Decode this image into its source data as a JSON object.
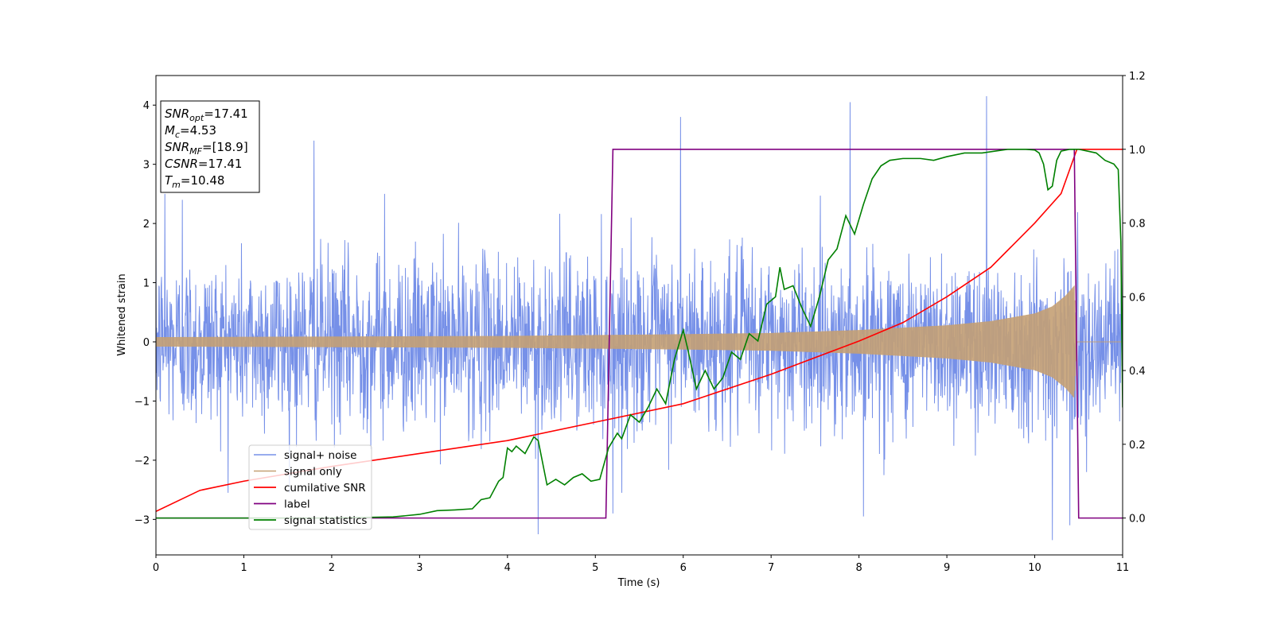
{
  "chart_data": {
    "type": "line",
    "xlabel": "Time (s)",
    "ylabel": "Whitened strain",
    "xlim": [
      0,
      11
    ],
    "ylim_left": [
      -3.6,
      4.5
    ],
    "ylim_right": [
      -0.1,
      1.2
    ],
    "x_ticks": [
      0,
      1,
      2,
      3,
      4,
      5,
      6,
      7,
      8,
      9,
      10,
      11
    ],
    "x_tick_labels": [
      "0",
      "1",
      "2",
      "3",
      "4",
      "5",
      "6",
      "7",
      "8",
      "9",
      "10",
      "11"
    ],
    "y_left_ticks": [
      -3,
      -2,
      -1,
      0,
      1,
      2,
      3,
      4
    ],
    "y_left_tick_labels": [
      "−3",
      "−2",
      "−1",
      "0",
      "1",
      "2",
      "3",
      "4"
    ],
    "y_right_ticks": [
      0.0,
      0.2,
      0.4,
      0.6,
      0.8,
      1.0,
      1.2
    ],
    "y_right_tick_labels": [
      "0.0",
      "0.2",
      "0.4",
      "0.6",
      "0.8",
      "1.0",
      "1.2"
    ],
    "grid": false,
    "legend_placement": "lower-left",
    "info_box": {
      "placement": "top-left",
      "lines": [
        {
          "base": "SNR",
          "sub": "opt",
          "value": "=17.41"
        },
        {
          "base": "M",
          "sub": "c",
          "value": "=4.53"
        },
        {
          "base": "SNR",
          "sub": "MF",
          "value": "=[18.9]"
        },
        {
          "base": "CSNR",
          "sub": "",
          "value": "=17.41"
        },
        {
          "base": "T",
          "sub": "m",
          "value": "=10.48"
        }
      ]
    },
    "series": [
      {
        "name": "signal+ noise",
        "axis": "left",
        "color": "#7690e8",
        "style": "noise",
        "sigma": 0.72,
        "spikes": [
          [
            0.1,
            2.5
          ],
          [
            0.3,
            2.4
          ],
          [
            1.8,
            3.4
          ],
          [
            2.6,
            2.5
          ],
          [
            4.35,
            -3.25
          ],
          [
            5.2,
            -2.9
          ],
          [
            5.97,
            3.8
          ],
          [
            7.9,
            4.05
          ],
          [
            8.05,
            -2.95
          ],
          [
            9.45,
            4.15
          ],
          [
            10.2,
            -3.35
          ],
          [
            10.4,
            -3.1
          ]
        ],
        "cutoff_x": 10.46
      },
      {
        "name": "signal only",
        "axis": "left",
        "color": "#c4a074",
        "style": "chirp",
        "envelope": [
          [
            0,
            0.08
          ],
          [
            2,
            0.09
          ],
          [
            4,
            0.1
          ],
          [
            6,
            0.13
          ],
          [
            7,
            0.15
          ],
          [
            8,
            0.2
          ],
          [
            9,
            0.28
          ],
          [
            9.5,
            0.35
          ],
          [
            10,
            0.48
          ],
          [
            10.2,
            0.6
          ],
          [
            10.35,
            0.78
          ],
          [
            10.45,
            0.95
          ],
          [
            10.48,
            0.0
          ]
        ],
        "cutoff_x": 10.48
      },
      {
        "name": "cumilative SNR",
        "axis": "right",
        "color": "#ff0000",
        "style": "line",
        "points": [
          [
            0.0,
            0.018
          ],
          [
            0.5,
            0.075
          ],
          [
            1.0,
            0.1
          ],
          [
            2.0,
            0.14
          ],
          [
            3.0,
            0.175
          ],
          [
            4.0,
            0.21
          ],
          [
            5.0,
            0.26
          ],
          [
            6.0,
            0.31
          ],
          [
            7.0,
            0.39
          ],
          [
            8.0,
            0.48
          ],
          [
            8.5,
            0.53
          ],
          [
            9.0,
            0.6
          ],
          [
            9.5,
            0.68
          ],
          [
            10.0,
            0.8
          ],
          [
            10.3,
            0.88
          ],
          [
            10.48,
            1.0
          ],
          [
            11.0,
            1.0
          ]
        ]
      },
      {
        "name": "label",
        "axis": "right",
        "color": "#800080",
        "style": "line",
        "points": [
          [
            0.0,
            0.0
          ],
          [
            5.12,
            0.0
          ],
          [
            5.2,
            1.0
          ],
          [
            10.45,
            1.0
          ],
          [
            10.5,
            0.0
          ],
          [
            11.0,
            0.0
          ]
        ]
      },
      {
        "name": "signal statistics",
        "axis": "right",
        "color": "#008000",
        "style": "line",
        "points": [
          [
            0.0,
            0.0
          ],
          [
            1.0,
            0.0
          ],
          [
            2.0,
            0.0
          ],
          [
            2.7,
            0.003
          ],
          [
            3.0,
            0.01
          ],
          [
            3.2,
            0.02
          ],
          [
            3.4,
            0.022
          ],
          [
            3.6,
            0.025
          ],
          [
            3.7,
            0.05
          ],
          [
            3.8,
            0.055
          ],
          [
            3.9,
            0.1
          ],
          [
            3.95,
            0.11
          ],
          [
            4.0,
            0.19
          ],
          [
            4.05,
            0.18
          ],
          [
            4.1,
            0.195
          ],
          [
            4.2,
            0.175
          ],
          [
            4.3,
            0.22
          ],
          [
            4.35,
            0.21
          ],
          [
            4.45,
            0.09
          ],
          [
            4.55,
            0.105
          ],
          [
            4.65,
            0.09
          ],
          [
            4.75,
            0.11
          ],
          [
            4.85,
            0.12
          ],
          [
            4.95,
            0.1
          ],
          [
            5.05,
            0.105
          ],
          [
            5.15,
            0.19
          ],
          [
            5.25,
            0.23
          ],
          [
            5.3,
            0.215
          ],
          [
            5.4,
            0.28
          ],
          [
            5.5,
            0.26
          ],
          [
            5.6,
            0.3
          ],
          [
            5.7,
            0.35
          ],
          [
            5.8,
            0.31
          ],
          [
            5.9,
            0.43
          ],
          [
            6.0,
            0.51
          ],
          [
            6.05,
            0.46
          ],
          [
            6.15,
            0.35
          ],
          [
            6.25,
            0.4
          ],
          [
            6.35,
            0.35
          ],
          [
            6.45,
            0.38
          ],
          [
            6.55,
            0.45
          ],
          [
            6.65,
            0.43
          ],
          [
            6.75,
            0.5
          ],
          [
            6.85,
            0.48
          ],
          [
            6.95,
            0.58
          ],
          [
            7.05,
            0.6
          ],
          [
            7.1,
            0.68
          ],
          [
            7.15,
            0.62
          ],
          [
            7.25,
            0.63
          ],
          [
            7.35,
            0.57
          ],
          [
            7.45,
            0.52
          ],
          [
            7.55,
            0.6
          ],
          [
            7.65,
            0.7
          ],
          [
            7.75,
            0.73
          ],
          [
            7.85,
            0.82
          ],
          [
            7.95,
            0.77
          ],
          [
            8.05,
            0.85
          ],
          [
            8.15,
            0.92
          ],
          [
            8.25,
            0.955
          ],
          [
            8.35,
            0.97
          ],
          [
            8.5,
            0.975
          ],
          [
            8.7,
            0.975
          ],
          [
            8.85,
            0.97
          ],
          [
            9.0,
            0.98
          ],
          [
            9.2,
            0.99
          ],
          [
            9.4,
            0.99
          ],
          [
            9.55,
            0.995
          ],
          [
            9.7,
            1.0
          ],
          [
            9.9,
            1.0
          ],
          [
            10.0,
            0.998
          ],
          [
            10.05,
            0.99
          ],
          [
            10.1,
            0.96
          ],
          [
            10.15,
            0.89
          ],
          [
            10.2,
            0.9
          ],
          [
            10.25,
            0.97
          ],
          [
            10.3,
            0.995
          ],
          [
            10.4,
            1.0
          ],
          [
            10.5,
            1.0
          ],
          [
            10.6,
            0.995
          ],
          [
            10.7,
            0.99
          ],
          [
            10.8,
            0.97
          ],
          [
            10.9,
            0.96
          ],
          [
            10.95,
            0.945
          ],
          [
            10.98,
            0.75
          ],
          [
            11.0,
            0.3
          ]
        ]
      }
    ]
  }
}
